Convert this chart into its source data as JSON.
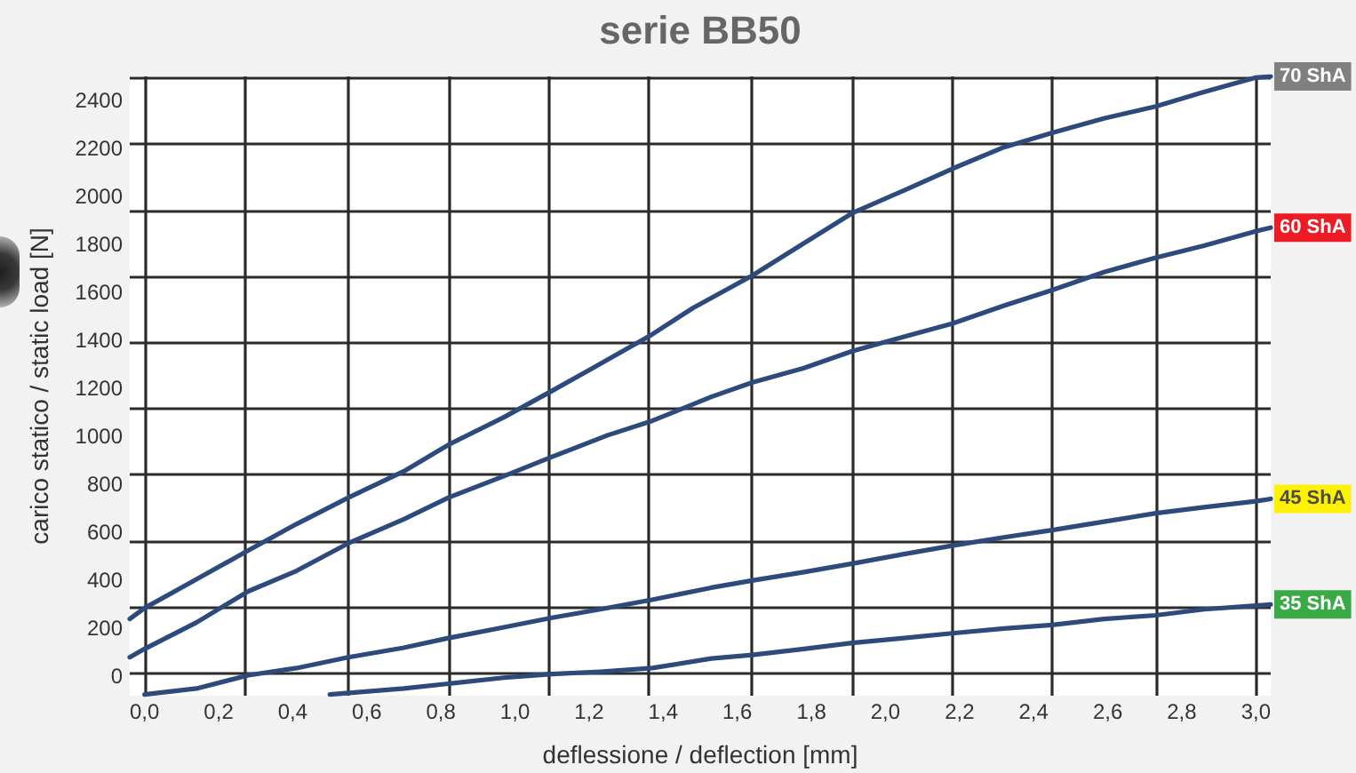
{
  "chart_data": {
    "type": "line",
    "title": "serie BB50",
    "xlabel": "deflessione / deflection [mm]",
    "ylabel": "carico statico / static load [N]",
    "xlim": [
      -0.04,
      3.04
    ],
    "ylim": [
      -80,
      2500
    ],
    "xticks": [
      {
        "value": 0,
        "label": "0,0"
      },
      {
        "value": 0.2,
        "label": "0,2"
      },
      {
        "value": 0.4,
        "label": "0,4"
      },
      {
        "value": 0.6,
        "label": "0,6"
      },
      {
        "value": 0.8,
        "label": "0,8"
      },
      {
        "value": 1,
        "label": "1,0"
      },
      {
        "value": 1.2,
        "label": "1,2"
      },
      {
        "value": 1.4,
        "label": "1,4"
      },
      {
        "value": 1.6,
        "label": "1,6"
      },
      {
        "value": 1.8,
        "label": "1,8"
      },
      {
        "value": 2,
        "label": "2,0"
      },
      {
        "value": 2.2,
        "label": "2,2"
      },
      {
        "value": 2.4,
        "label": "2,4"
      },
      {
        "value": 2.6,
        "label": "2,6"
      },
      {
        "value": 2.8,
        "label": "2,8"
      },
      {
        "value": 3,
        "label": "3,0"
      },
      {
        "value": 0,
        "label": null
      },
      {
        "value": 0.27,
        "label": null
      },
      {
        "value": 0.55,
        "label": null
      },
      {
        "value": 0.82,
        "label": null
      },
      {
        "value": 1.09,
        "label": null
      },
      {
        "value": 1.36,
        "label": null
      },
      {
        "value": 1.64,
        "label": null
      },
      {
        "value": 1.91,
        "label": null
      },
      {
        "value": 2.18,
        "label": null
      },
      {
        "value": 2.45,
        "label": null
      },
      {
        "value": 2.73,
        "label": null
      },
      {
        "value": 3,
        "label": null
      }
    ],
    "yticks": [
      0,
      200,
      400,
      600,
      800,
      1000,
      1200,
      1400,
      1600,
      1800,
      2000,
      2200,
      2400,
      {
        "value": 15,
        "label": null
      },
      {
        "value": 290,
        "label": null
      },
      {
        "value": 565,
        "label": null
      },
      {
        "value": 840,
        "label": null
      },
      {
        "value": 1115,
        "label": null
      },
      {
        "value": 1390,
        "label": null
      },
      {
        "value": 1665,
        "label": null
      },
      {
        "value": 1940,
        "label": null
      },
      {
        "value": 2220,
        "label": null
      },
      {
        "value": 2495,
        "label": null
      }
    ],
    "grid": true,
    "legend": false,
    "marker": "none",
    "line_style": "solid",
    "series": [
      {
        "name": "70 ShA",
        "color": "#2d4a7c",
        "x": [
          -0.04,
          0,
          0.14,
          0.28,
          0.41,
          0.55,
          0.7,
          0.82,
          0.97,
          1.1,
          1.21,
          1.37,
          1.48,
          1.64,
          1.78,
          1.91,
          2.05,
          2.18,
          2.32,
          2.45,
          2.59,
          2.73,
          2.86,
          3,
          3.04
        ],
        "values": [
          240,
          285,
          405,
          525,
          635,
          745,
          855,
          965,
          1080,
          1190,
          1285,
          1425,
          1535,
          1670,
          1805,
          1930,
          2025,
          2115,
          2205,
          2265,
          2325,
          2375,
          2435,
          2495,
          2500
        ]
      },
      {
        "name": "60 ShA",
        "color": "#2d4a7c",
        "x": [
          -0.04,
          0,
          0.14,
          0.28,
          0.41,
          0.55,
          0.7,
          0.82,
          0.97,
          1.1,
          1.25,
          1.37,
          1.53,
          1.64,
          1.78,
          1.91,
          2.05,
          2.18,
          2.32,
          2.45,
          2.59,
          2.73,
          2.86,
          3,
          3.04
        ],
        "values": [
          80,
          115,
          225,
          355,
          440,
          555,
          655,
          745,
          835,
          915,
          1005,
          1065,
          1165,
          1225,
          1285,
          1355,
          1415,
          1470,
          1545,
          1610,
          1685,
          1745,
          1795,
          1855,
          1870
        ]
      },
      {
        "name": "45 ShA",
        "color": "#2d4a7c",
        "x": [
          0,
          0.14,
          0.28,
          0.41,
          0.55,
          0.7,
          0.82,
          0.97,
          1.1,
          1.23,
          1.37,
          1.53,
          1.64,
          1.78,
          1.91,
          2.05,
          2.18,
          2.32,
          2.45,
          2.59,
          2.73,
          2.86,
          3,
          3.04
        ],
        "values": [
          -75,
          -50,
          5,
          35,
          80,
          120,
          160,
          205,
          245,
          280,
          320,
          370,
          400,
          435,
          470,
          510,
          545,
          580,
          610,
          645,
          680,
          705,
          730,
          740
        ]
      },
      {
        "name": "35 ShA",
        "color": "#2d4a7c",
        "x": [
          0.5,
          0.7,
          0.82,
          0.97,
          1.1,
          1.23,
          1.37,
          1.53,
          1.64,
          1.78,
          1.91,
          2.05,
          2.18,
          2.32,
          2.45,
          2.59,
          2.73,
          2.86,
          3,
          3.04
        ],
        "values": [
          -75,
          -50,
          -30,
          -5,
          10,
          20,
          35,
          75,
          90,
          115,
          140,
          160,
          180,
          200,
          215,
          240,
          255,
          280,
          295,
          300
        ]
      }
    ]
  }
}
